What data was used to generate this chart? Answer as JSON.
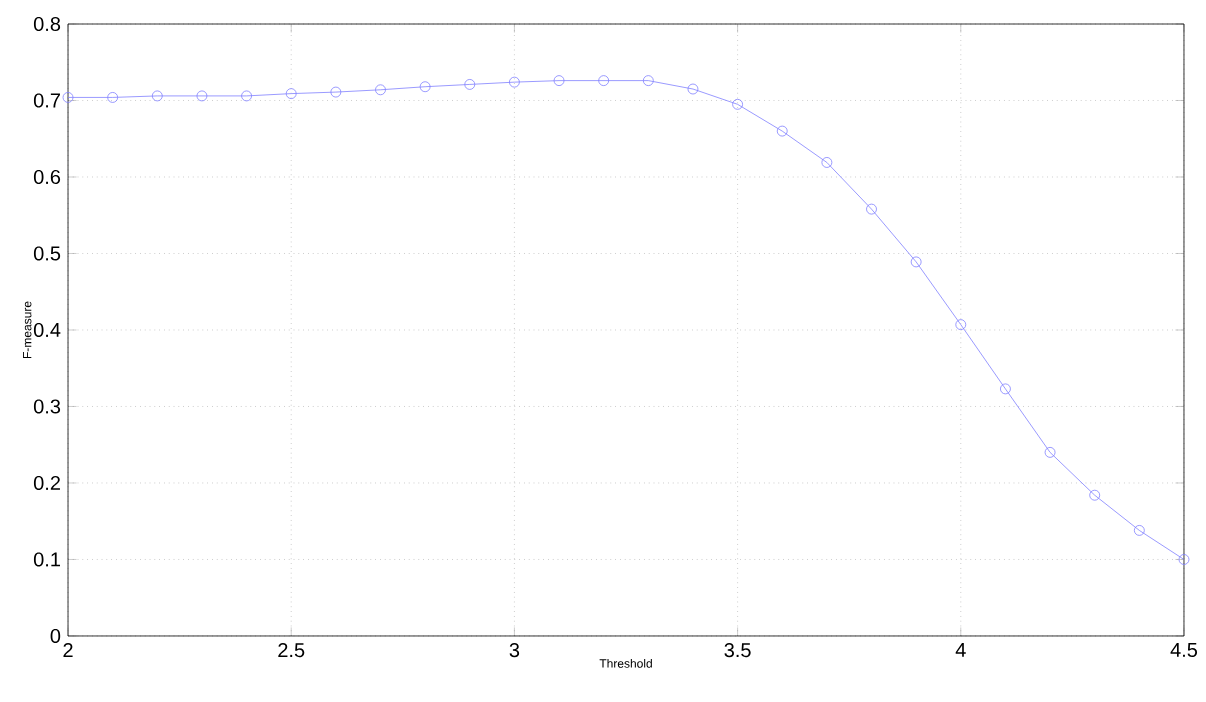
{
  "chart_data": {
    "type": "line",
    "xlabel": "Threshold",
    "ylabel": "F-measure",
    "x": [
      2.0,
      2.1,
      2.2,
      2.3,
      2.4,
      2.5,
      2.6,
      2.7,
      2.8,
      2.9,
      3.0,
      3.1,
      3.2,
      3.3,
      3.4,
      3.5,
      3.6,
      3.7,
      3.8,
      3.9,
      4.0,
      4.1,
      4.2,
      4.3,
      4.4,
      4.5
    ],
    "series": [
      {
        "color": "#8080ff",
        "values": [
          0.704,
          0.704,
          0.706,
          0.706,
          0.706,
          0.709,
          0.711,
          0.714,
          0.718,
          0.721,
          0.724,
          0.726,
          0.726,
          0.726,
          0.715,
          0.695,
          0.66,
          0.619,
          0.558,
          0.489,
          0.407,
          0.323,
          0.24,
          0.184,
          0.138,
          0.1
        ]
      }
    ],
    "xlim": [
      2,
      4.5
    ],
    "ylim": [
      0,
      0.8
    ],
    "xticks": [
      2,
      2.5,
      3,
      3.5,
      4,
      4.5
    ],
    "yticks": [
      0,
      0.1,
      0.2,
      0.3,
      0.4,
      0.5,
      0.6,
      0.7,
      0.8
    ],
    "grid": true,
    "marker": "circle",
    "line_style": "solid"
  }
}
